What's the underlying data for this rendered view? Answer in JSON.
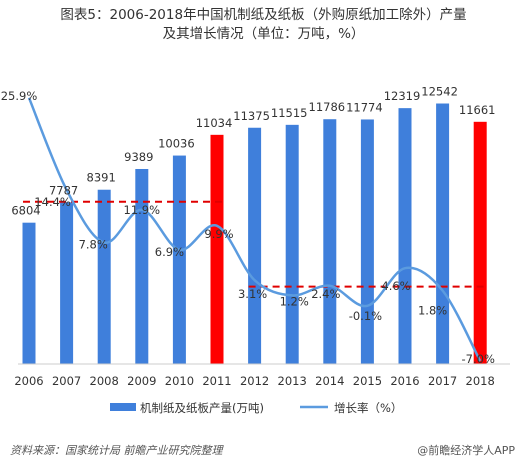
{
  "title_line1": "图表5：2006-2018年中国机制纸及纸板（外购原纸加工除外）产量",
  "title_line2": "及其增长情况（单位：万吨，%）",
  "source_left": "资料来源：国家统计局 前瞻产业研究院整理",
  "source_right": "@前瞻经济学人APP",
  "colors": {
    "bar": "#3f7fdb",
    "highlight": "#ff0000",
    "line": "#5b9bdf",
    "dash": "#e00000"
  },
  "chart_data": {
    "type": "bar",
    "categories": [
      "2006",
      "2007",
      "2008",
      "2009",
      "2010",
      "2011",
      "2012",
      "2013",
      "2014",
      "2015",
      "2016",
      "2017",
      "2018"
    ],
    "series": [
      {
        "name": "机制纸及纸板产量(万吨)",
        "type": "bar",
        "values": [
          6804,
          7787,
          8391,
          9389,
          10036,
          11034,
          11375,
          11515,
          11786,
          11774,
          12319,
          12542,
          11661
        ],
        "labels": [
          "6804",
          "7787",
          "8391",
          "9389",
          "10036",
          "11034",
          "11375",
          "11515",
          "11786",
          "11774",
          "12319",
          "12542",
          "11661"
        ],
        "highlighted": [
          "2011",
          "2018"
        ]
      },
      {
        "name": "增长率（%）",
        "type": "line",
        "values": [
          25.9,
          14.4,
          7.8,
          11.9,
          6.9,
          9.9,
          3.1,
          1.2,
          2.4,
          -0.1,
          4.6,
          1.8,
          -7.0
        ],
        "labels": [
          "25.9%",
          "14.4%",
          "7.8%",
          "11.9%",
          "6.9%",
          "9.9%",
          "3.1%",
          "1.2%",
          "2.4%",
          "-0.1%",
          "4.6%",
          "1.8%",
          "-7.0%"
        ]
      }
    ],
    "ylim_bar": [
      0,
      13000
    ],
    "ylim_line": [
      -7,
      26
    ],
    "average_lines": [
      {
        "from": "2006",
        "to": "2011",
        "value": 12.9
      },
      {
        "from": "2012",
        "to": "2018",
        "value": 2.3
      }
    ],
    "legend_position": "bottom"
  }
}
